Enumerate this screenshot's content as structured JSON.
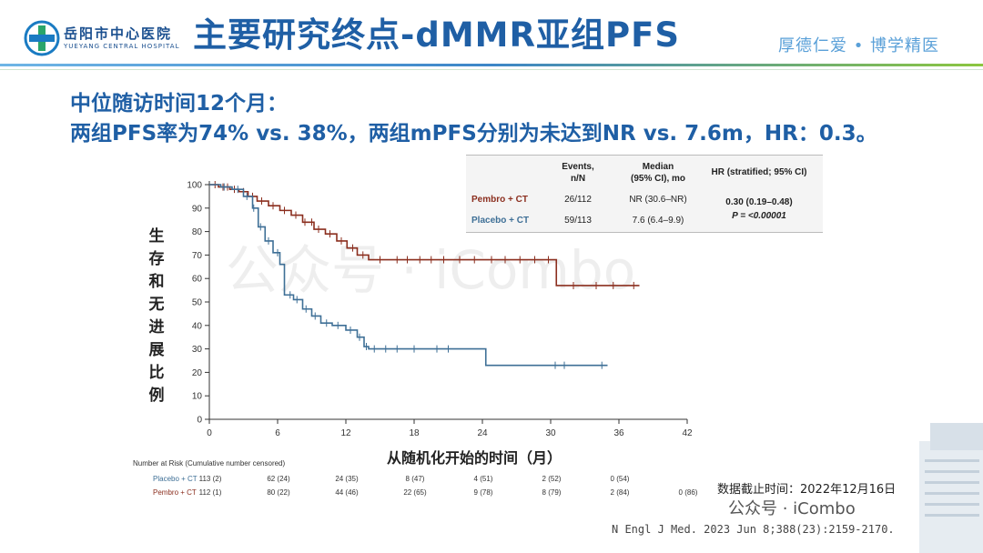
{
  "header": {
    "hospital_cn": "岳阳市中心医院",
    "hospital_en": "YUEYANG CENTRAL HOSPITAL",
    "title": "主要研究终点-dMMR亚组PFS",
    "motto": "厚德仁爱 • 博学精医"
  },
  "subtitle": {
    "line1": "中位随访时间12个月：",
    "line2": "两组PFS率为74% vs. 38%，两组mPFS分别为未达到NR vs. 7.6m，HR：0.3。"
  },
  "stats_table": {
    "col_events": "Events,\nn/N",
    "col_median": "Median\n(95% CI), mo",
    "col_hr": "HR (stratified; 95% CI)",
    "rows": [
      {
        "group": "Pembro + CT",
        "events": "26/112",
        "median": "NR (30.6–NR)"
      },
      {
        "group": "Placebo + CT",
        "events": "59/113",
        "median": "7.6 (6.4–9.9)"
      }
    ],
    "hr": "0.30 (0.19–0.48)",
    "p_value": "P = <0.00001"
  },
  "chart_data": {
    "type": "line",
    "ylabel": "生存和无进展比例",
    "xlabel": "从随机化开始的时间（月）",
    "x_ticks": [
      0,
      6,
      12,
      18,
      24,
      30,
      36,
      42
    ],
    "y_ticks": [
      0,
      10,
      20,
      30,
      40,
      50,
      60,
      70,
      80,
      90,
      100
    ],
    "xlim": [
      0,
      42
    ],
    "ylim": [
      0,
      100
    ],
    "grid": false,
    "series": [
      {
        "name": "Pembro + CT",
        "color": "#8b2e1e",
        "points": [
          [
            0,
            100
          ],
          [
            0.8,
            99
          ],
          [
            1.8,
            98
          ],
          [
            2.6,
            97
          ],
          [
            3.4,
            95
          ],
          [
            4.2,
            93
          ],
          [
            5.2,
            91
          ],
          [
            6.2,
            89
          ],
          [
            7.2,
            87
          ],
          [
            8.2,
            84
          ],
          [
            9.2,
            81
          ],
          [
            10.2,
            79
          ],
          [
            11.2,
            76
          ],
          [
            12.1,
            73
          ],
          [
            13.0,
            70
          ],
          [
            14.0,
            68
          ],
          [
            30.5,
            68
          ],
          [
            30.5,
            57
          ],
          [
            37.8,
            57
          ]
        ],
        "censor_x": [
          0.5,
          1.2,
          1.6,
          2.2,
          3,
          3.8,
          4.6,
          5.6,
          6.6,
          7.6,
          8.4,
          9,
          9.6,
          10.6,
          11.6,
          12.6,
          13.5,
          15,
          16.5,
          17.4,
          18.5,
          19.5,
          20.6,
          22,
          23.3,
          24.8,
          26,
          27.3,
          28.6,
          29.8,
          32,
          34,
          35.5,
          37.3
        ]
      },
      {
        "name": "Placebo + CT",
        "color": "#3e6f96",
        "points": [
          [
            0,
            100
          ],
          [
            1,
            99
          ],
          [
            2,
            98
          ],
          [
            3,
            95
          ],
          [
            3.8,
            90
          ],
          [
            4.3,
            82
          ],
          [
            4.9,
            76
          ],
          [
            5.6,
            71
          ],
          [
            6.2,
            66
          ],
          [
            6.6,
            53
          ],
          [
            7.4,
            51
          ],
          [
            8.2,
            47
          ],
          [
            9,
            44
          ],
          [
            9.8,
            41
          ],
          [
            10.8,
            40
          ],
          [
            12,
            38
          ],
          [
            13,
            35
          ],
          [
            13.6,
            31
          ],
          [
            14,
            30
          ],
          [
            24.3,
            30
          ],
          [
            24.3,
            23
          ],
          [
            35,
            23
          ]
        ],
        "censor_x": [
          1.3,
          2.5,
          3.3,
          3.9,
          4.5,
          5.2,
          6,
          7.1,
          7.7,
          8.5,
          9.3,
          10.3,
          11.3,
          12.4,
          13.2,
          13.8,
          14.5,
          15.5,
          16.5,
          18,
          20,
          21,
          30.4,
          31.2,
          34.5
        ]
      }
    ]
  },
  "at_risk": {
    "title": "Number at Risk (Cumulative number censored)",
    "rows": [
      {
        "group": "Placebo + CT",
        "values": [
          "113 (2)",
          "62 (24)",
          "24 (35)",
          "8 (47)",
          "4 (51)",
          "2 (52)",
          "0 (54)"
        ]
      },
      {
        "group": "Pembro + CT",
        "values": [
          "112 (1)",
          "80 (22)",
          "44 (46)",
          "22 (65)",
          "9 (78)",
          "8 (79)",
          "2 (84)",
          "0 (86)"
        ]
      }
    ]
  },
  "footer": {
    "cutoff": "数据截止时间：2022年12月16日",
    "citation": "N Engl J Med. 2023 Jun 8;388(23):2159-2170.",
    "watermark": "公众号 · iCombo",
    "watermark_corner": "公众号 · iCombo"
  }
}
